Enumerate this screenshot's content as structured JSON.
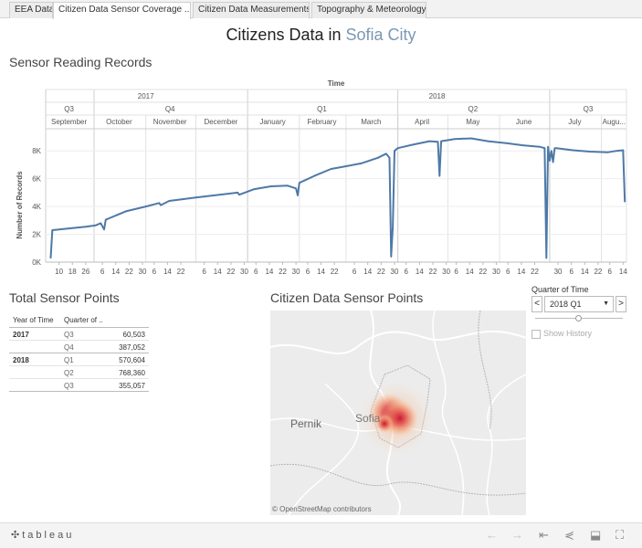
{
  "tabs": [
    "EEA Data",
    "Citizen Data Sensor Coverage ...",
    "Citizen Data Measurements",
    "Topography & Meteorology"
  ],
  "active_tab": 1,
  "title": {
    "main": "Citizens Data",
    "connector": "in",
    "city": "Sofia City"
  },
  "sensor_section": {
    "title": "Sensor Reading Records"
  },
  "chart_data": {
    "type": "line",
    "title": "Sensor Reading Records",
    "header_label": "Time",
    "years": [
      "2017",
      "2018"
    ],
    "quarters": [
      "Q3",
      "Q4",
      "Q1",
      "Q2",
      "Q3"
    ],
    "months": [
      "September",
      "October",
      "November",
      "December",
      "January",
      "February",
      "March",
      "April",
      "May",
      "June",
      "July",
      "Augu..."
    ],
    "ylabel": "Number of Records",
    "yticks": [
      "0K",
      "2K",
      "4K",
      "6K",
      "8K"
    ],
    "ylim": [
      0,
      9000
    ],
    "day_ticks": [
      "10",
      "18",
      "26",
      "6",
      "14",
      "22",
      "30",
      "6",
      "14",
      "22",
      "6",
      "14",
      "22",
      "30",
      "6",
      "14",
      "22",
      "30",
      "6",
      "14",
      "22",
      "6",
      "14",
      "22",
      "30",
      "6",
      "14",
      "22",
      "30",
      "6",
      "14",
      "22",
      "30",
      "6",
      "14",
      "22",
      "30",
      "6",
      "14",
      "22",
      "6",
      "14",
      "22",
      "30",
      "6",
      "14"
    ],
    "x": [
      "2017-09-05",
      "2017-09-06",
      "2017-09-10",
      "2017-09-18",
      "2017-09-26",
      "2017-10-02",
      "2017-10-05",
      "2017-10-07",
      "2017-10-08",
      "2017-10-12",
      "2017-10-20",
      "2017-11-01",
      "2017-11-09",
      "2017-11-10",
      "2017-11-15",
      "2017-12-01",
      "2017-12-15",
      "2017-12-26",
      "2017-12-27",
      "2018-01-05",
      "2018-01-15",
      "2018-01-25",
      "2018-01-30",
      "2018-01-31",
      "2018-02-01",
      "2018-02-10",
      "2018-02-20",
      "2018-03-01",
      "2018-03-10",
      "2018-03-20",
      "2018-03-25",
      "2018-03-27",
      "2018-03-28",
      "2018-03-29",
      "2018-03-30",
      "2018-04-01",
      "2018-04-10",
      "2018-04-20",
      "2018-04-25",
      "2018-04-26",
      "2018-04-27",
      "2018-05-05",
      "2018-05-15",
      "2018-05-25",
      "2018-06-05",
      "2018-06-15",
      "2018-06-25",
      "2018-06-28",
      "2018-06-29",
      "2018-06-30",
      "2018-07-01",
      "2018-07-02",
      "2018-07-03",
      "2018-07-04",
      "2018-07-05",
      "2018-07-15",
      "2018-07-25",
      "2018-08-05",
      "2018-08-10",
      "2018-08-14",
      "2018-08-15"
    ],
    "series": [
      {
        "values": [
          300,
          2300,
          2350,
          2450,
          2550,
          2650,
          2800,
          2350,
          3050,
          3250,
          3650,
          4000,
          4250,
          4100,
          4400,
          4650,
          4850,
          5000,
          4850,
          5250,
          5450,
          5500,
          5300,
          4800,
          5700,
          6200,
          6700,
          6900,
          7100,
          7500,
          7800,
          7500,
          400,
          2500,
          8000,
          8200,
          8450,
          8700,
          8650,
          6200,
          8700,
          8850,
          8900,
          8700,
          8550,
          8400,
          8300,
          8200,
          300,
          8300,
          7300,
          8000,
          7200,
          8200,
          8200,
          8050,
          7950,
          7900,
          8000,
          8050,
          4350
        ]
      }
    ]
  },
  "sensor_points": {
    "title": "Total Sensor Points",
    "columns": [
      "Year of Time",
      "Quarter of .."
    ],
    "rows": [
      {
        "year": "2017",
        "quarter": "Q3",
        "value": "60,503"
      },
      {
        "year": "",
        "quarter": "Q4",
        "value": "387,052"
      },
      {
        "year": "2018",
        "quarter": "Q1",
        "value": "570,604"
      },
      {
        "year": "",
        "quarter": "Q2",
        "value": "768,360"
      },
      {
        "year": "",
        "quarter": "Q3",
        "value": "355,057"
      }
    ]
  },
  "map": {
    "title": "Citizen Data Sensor Points",
    "label_pernik": "Pernik",
    "label_sofia": "Sofia",
    "attribution": "© OpenStreetMap contributors"
  },
  "quarter_filter": {
    "label": "Quarter of Time",
    "value": "2018 Q1",
    "prev": "<",
    "next": ">",
    "show_history": "Show History"
  },
  "footer": {
    "brand": "tableau",
    "icons": [
      "undo-icon",
      "redo-icon",
      "revert-icon",
      "share-icon",
      "download-icon",
      "fullscreen-icon"
    ]
  },
  "colors": {
    "line": "#4e79a7",
    "accent": "#7b98b5",
    "heat_core": "#c8102e"
  }
}
